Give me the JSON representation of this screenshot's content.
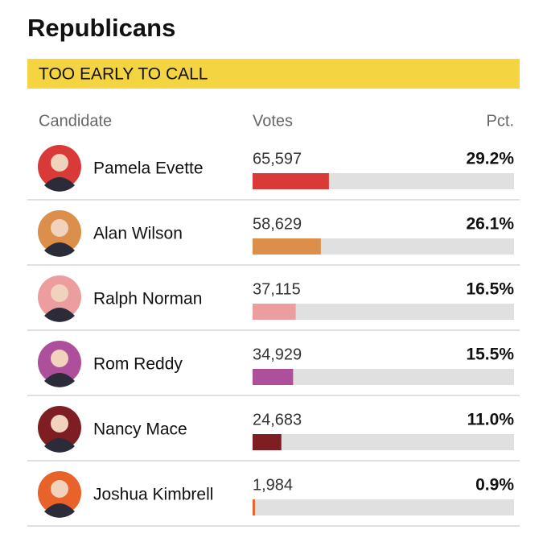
{
  "title": "Republicans",
  "status": "TOO EARLY TO CALL",
  "columns": [
    "Candidate",
    "Votes",
    "Pct."
  ],
  "votes": [
    "65,597",
    "58,629",
    "37,115",
    "34,929",
    "24,683",
    "1,984"
  ],
  "chart_data": {
    "type": "bar",
    "orientation": "horizontal",
    "categories": [
      "Pamela Evette",
      "Alan Wilson",
      "Ralph Norman",
      "Rom Reddy",
      "Nancy Mace",
      "Joshua Kimbrell"
    ],
    "values": [
      29.2,
      26.1,
      16.5,
      15.5,
      11.0,
      0.9
    ],
    "value_labels": [
      "29.2%",
      "26.1%",
      "16.5%",
      "15.5%",
      "11.0%",
      "0.9%"
    ],
    "colors": [
      "#d93a37",
      "#dc8f4b",
      "#ec9e9e",
      "#ad4f9b",
      "#7f1e22",
      "#e9622a"
    ],
    "xlim": [
      0,
      100
    ]
  }
}
